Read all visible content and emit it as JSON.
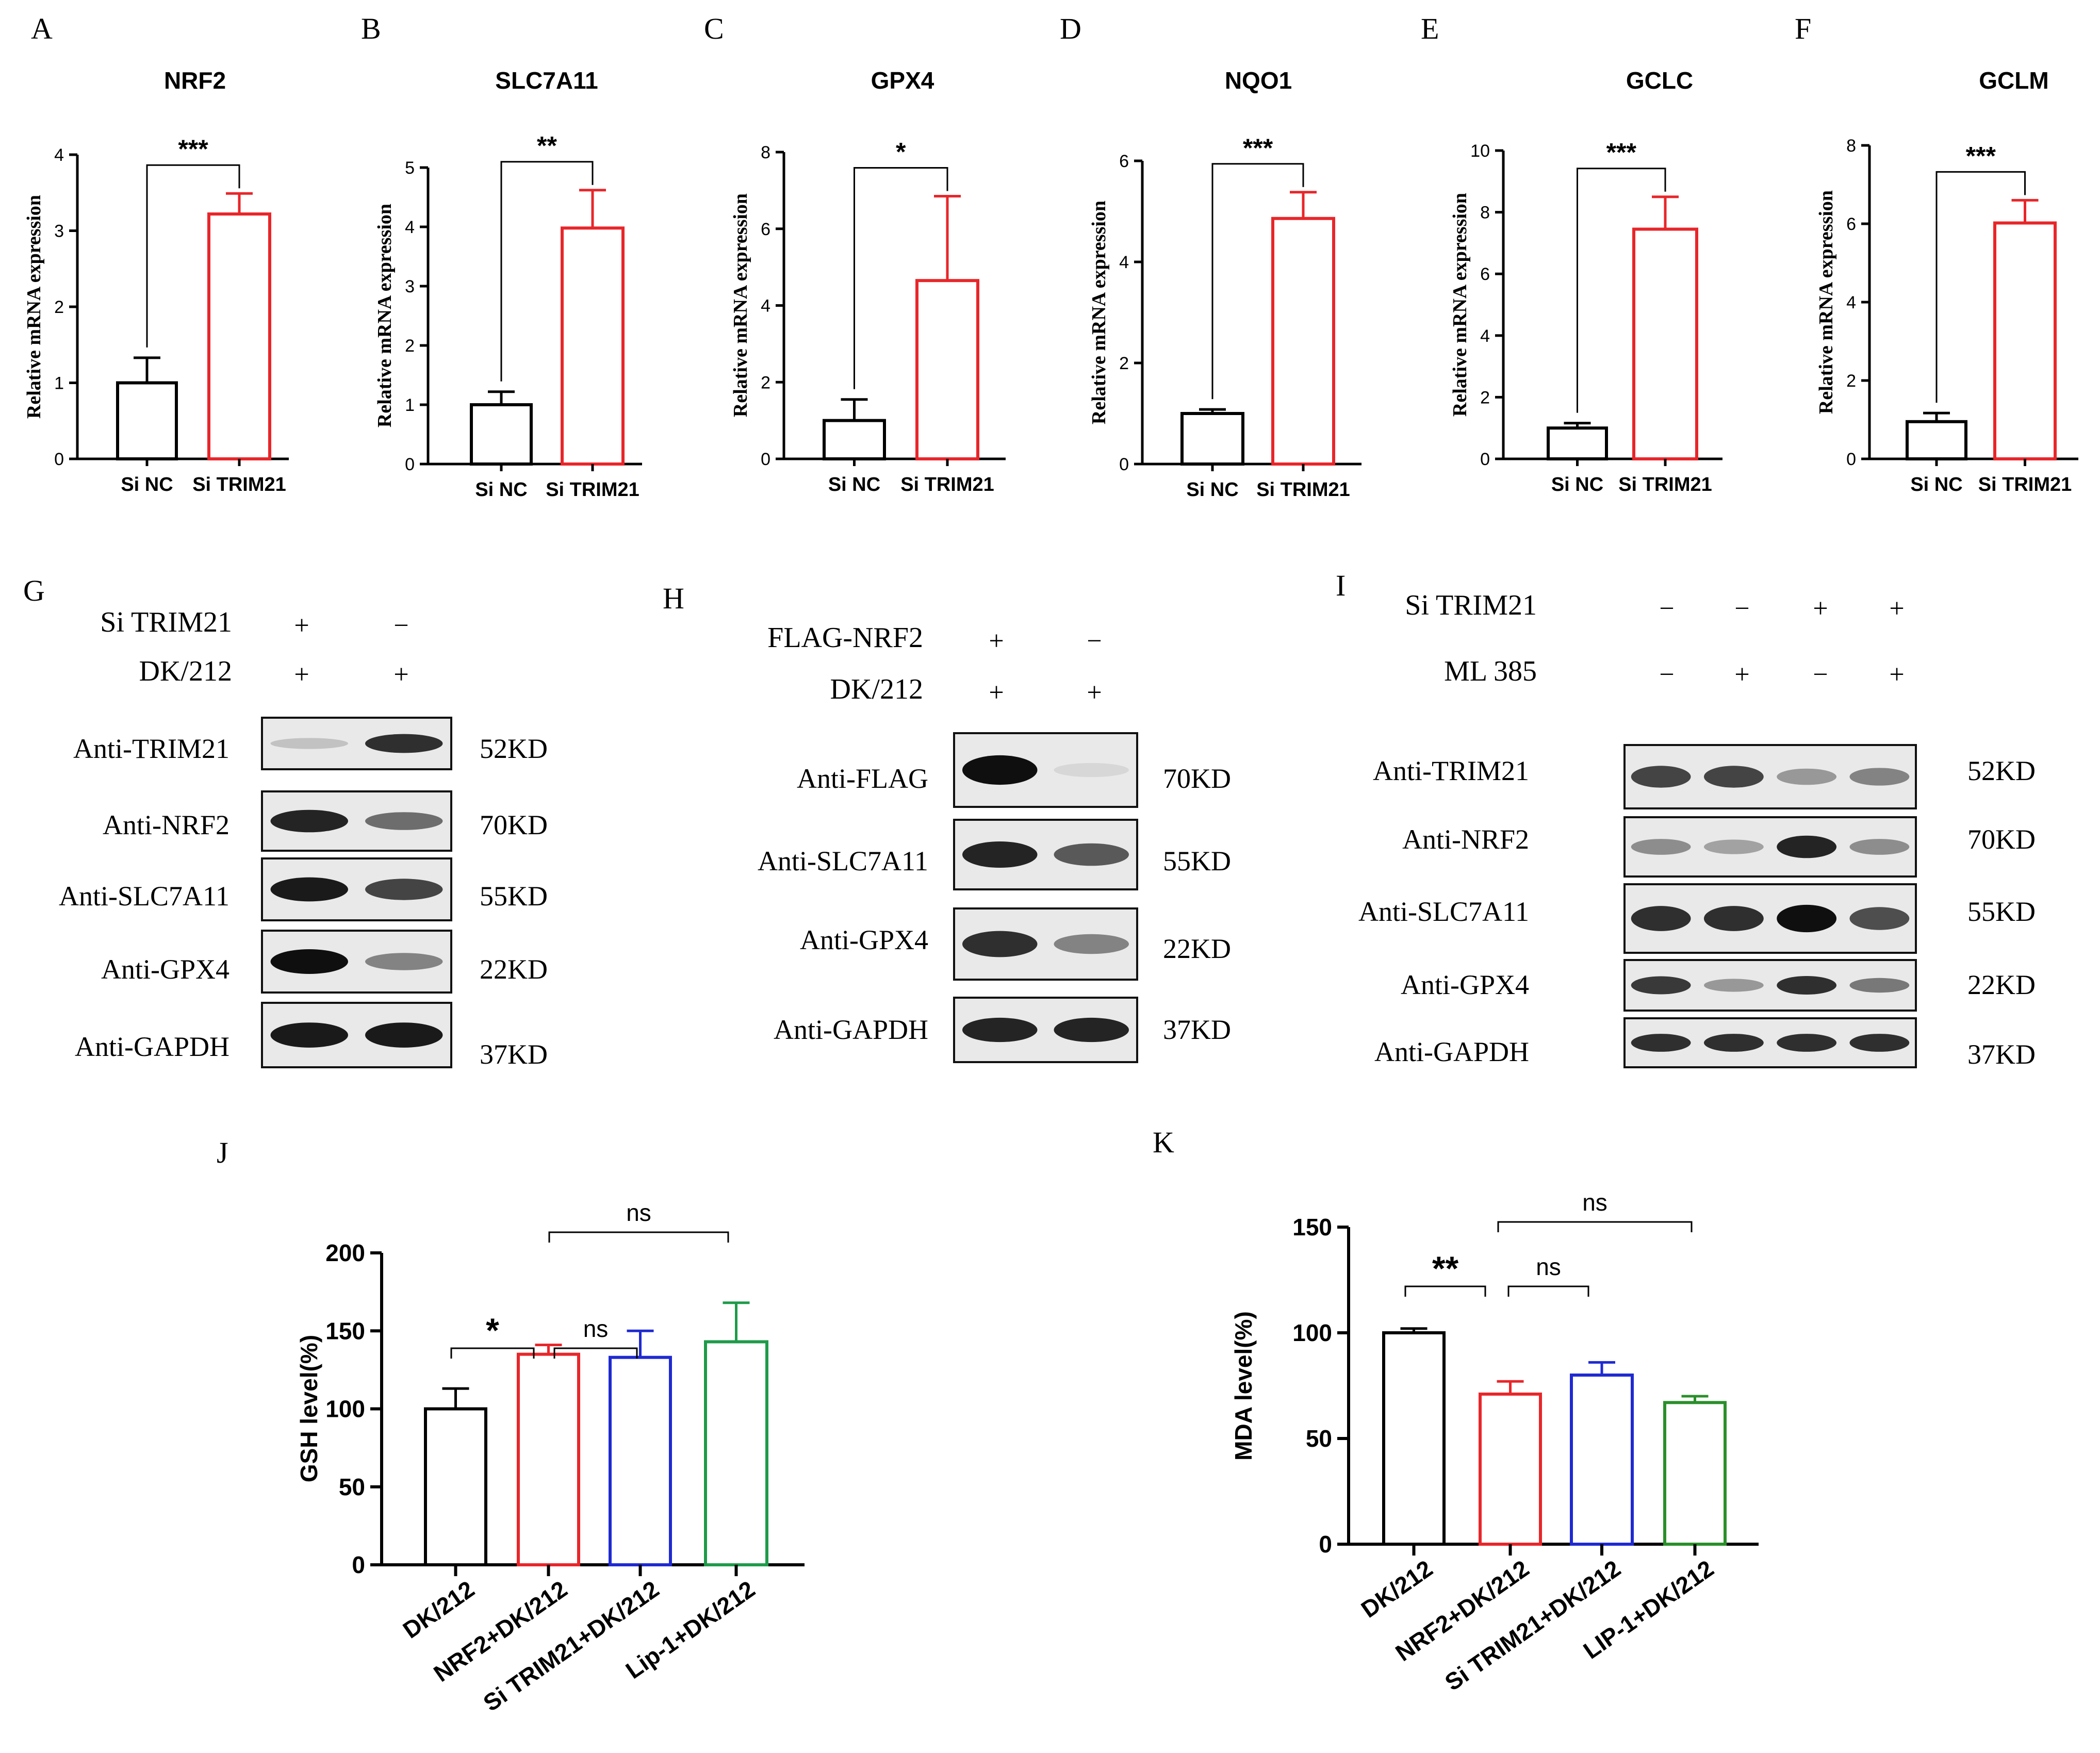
{
  "panel_letters": [
    "A",
    "B",
    "C",
    "D",
    "E",
    "F",
    "G",
    "H",
    "I",
    "J",
    "K"
  ],
  "colors": {
    "black": "#000000",
    "red": "#e8262a",
    "blue": "#1f2ad1",
    "green": "#1e9b4a",
    "greenK": "#2a8f2a"
  },
  "chart_data": [
    {
      "panel": "A",
      "type": "bar",
      "title": "NRF2",
      "ylabel": "Relative mRNA expression",
      "categories": [
        "Si NC",
        "Si TRIM21"
      ],
      "values": [
        1.0,
        3.22
      ],
      "errors": [
        0.33,
        0.27
      ],
      "ylim": [
        0,
        4
      ],
      "yticks": [
        0,
        1,
        2,
        3,
        4
      ],
      "significance": "***",
      "colors": [
        "black",
        "red"
      ]
    },
    {
      "panel": "B",
      "type": "bar",
      "title": "SLC7A11",
      "ylabel": "Relative mRNA expression",
      "categories": [
        "Si NC",
        "Si TRIM21"
      ],
      "values": [
        1.0,
        3.98
      ],
      "errors": [
        0.22,
        0.64
      ],
      "ylim": [
        0,
        5
      ],
      "yticks": [
        0,
        1,
        2,
        3,
        4,
        5
      ],
      "significance": "**",
      "colors": [
        "black",
        "red"
      ]
    },
    {
      "panel": "C",
      "type": "bar",
      "title": "GPX4",
      "ylabel": "Relative mRNA expression",
      "categories": [
        "Si NC",
        "Si TRIM21"
      ],
      "values": [
        1.0,
        4.65
      ],
      "errors": [
        0.55,
        2.2
      ],
      "ylim": [
        0,
        8
      ],
      "yticks": [
        0,
        2,
        4,
        6,
        8
      ],
      "significance": "*",
      "colors": [
        "black",
        "red"
      ]
    },
    {
      "panel": "D",
      "type": "bar",
      "title": "NQO1",
      "ylabel": "Relative mRNA expression",
      "categories": [
        "Si NC",
        "Si TRIM21"
      ],
      "values": [
        1.0,
        4.86
      ],
      "errors": [
        0.08,
        0.52
      ],
      "ylim": [
        0,
        6
      ],
      "yticks": [
        0,
        2,
        4,
        6
      ],
      "significance": "***",
      "colors": [
        "black",
        "red"
      ]
    },
    {
      "panel": "E",
      "type": "bar",
      "title": "GCLC",
      "ylabel": "Relative mRNA expression",
      "categories": [
        "Si NC",
        "Si TRIM21"
      ],
      "values": [
        1.0,
        7.45
      ],
      "errors": [
        0.16,
        1.05
      ],
      "ylim": [
        0,
        10
      ],
      "yticks": [
        0,
        2,
        4,
        6,
        8,
        10
      ],
      "significance": "***",
      "colors": [
        "black",
        "red"
      ]
    },
    {
      "panel": "F",
      "type": "bar",
      "title": "GCLM",
      "ylabel": "Relative mRNA expression",
      "categories": [
        "Si NC",
        "Si TRIM21"
      ],
      "values": [
        0.95,
        6.02
      ],
      "errors": [
        0.22,
        0.58
      ],
      "ylim": [
        0,
        8
      ],
      "yticks": [
        0,
        2,
        4,
        6,
        8
      ],
      "significance": "***",
      "colors": [
        "black",
        "red"
      ]
    },
    {
      "panel": "J",
      "type": "bar",
      "title": "",
      "ylabel": "GSH  level(%)",
      "categories": [
        "DK/212",
        "NRF2+DK/212",
        "Si TRIM21+DK/212",
        "Lip-1+DK/212"
      ],
      "values": [
        100,
        135,
        133,
        143
      ],
      "errors": [
        13,
        6,
        17,
        25
      ],
      "ylim": [
        0,
        200
      ],
      "yticks": [
        0,
        50,
        100,
        150,
        200
      ],
      "significance_pairs": [
        {
          "label": "*",
          "from": 0,
          "to": 1
        },
        {
          "label": "ns",
          "from": 1,
          "to": 2
        },
        {
          "label": "ns",
          "from": 1,
          "to": 3
        }
      ],
      "colors": [
        "black",
        "red",
        "blue",
        "green"
      ]
    },
    {
      "panel": "K",
      "type": "bar",
      "title": "",
      "ylabel": "MDA level(%)",
      "categories": [
        "DK/212",
        "NRF2+DK/212",
        "Si TRIM21+DK/212",
        "LIP-1+DK/212"
      ],
      "values": [
        100,
        71,
        80,
        67
      ],
      "errors": [
        2,
        6,
        6,
        3
      ],
      "ylim": [
        0,
        150
      ],
      "yticks": [
        0,
        50,
        100,
        150
      ],
      "significance_pairs": [
        {
          "label": "**",
          "from": 0,
          "to": 1
        },
        {
          "label": "ns",
          "from": 1,
          "to": 2
        },
        {
          "label": "ns",
          "from": 1,
          "to": 3
        }
      ],
      "colors": [
        "black",
        "red",
        "blue",
        "greenK"
      ]
    }
  ],
  "blots": {
    "G": {
      "conditions": [
        {
          "label": "Si TRIM21",
          "signs": [
            "+",
            "−"
          ]
        },
        {
          "label": "DK/212",
          "signs": [
            "+",
            "+"
          ]
        }
      ],
      "rows": [
        {
          "label": "Anti-TRIM21",
          "kd": "52KD",
          "bands": [
            0.15,
            0.85
          ]
        },
        {
          "label": "Anti-NRF2",
          "kd": "70KD",
          "bands": [
            0.9,
            0.55
          ]
        },
        {
          "label": "Anti-SLC7A11",
          "kd": "55KD",
          "bands": [
            0.95,
            0.75
          ]
        },
        {
          "label": "Anti-GPX4",
          "kd": "22KD",
          "bands": [
            1.0,
            0.45
          ]
        },
        {
          "label": "Anti-GAPDH",
          "kd": "37KD",
          "bands": [
            0.95,
            0.95
          ]
        }
      ]
    },
    "H": {
      "conditions": [
        {
          "label": "FLAG-NRF2",
          "signs": [
            "+",
            "−"
          ]
        },
        {
          "label": "DK/212",
          "signs": [
            "+",
            "+"
          ]
        }
      ],
      "rows": [
        {
          "label": "Anti-FLAG",
          "kd": "70KD",
          "bands": [
            1.0,
            0.05
          ]
        },
        {
          "label": "Anti-SLC7A11",
          "kd": "55KD",
          "bands": [
            0.9,
            0.65
          ]
        },
        {
          "label": "Anti-GPX4",
          "kd": "22KD",
          "bands": [
            0.85,
            0.45
          ]
        },
        {
          "label": "Anti-GAPDH",
          "kd": "37KD",
          "bands": [
            0.9,
            0.9
          ]
        }
      ]
    },
    "I": {
      "conditions": [
        {
          "label": "Si TRIM21",
          "signs": [
            "−",
            "−",
            "+",
            "+"
          ]
        },
        {
          "label": "ML 385",
          "signs": [
            "−",
            "+",
            "−",
            "+"
          ]
        }
      ],
      "rows": [
        {
          "label": "Anti-TRIM21",
          "kd": "52KD",
          "bands": [
            0.75,
            0.75,
            0.35,
            0.45
          ]
        },
        {
          "label": "Anti-NRF2",
          "kd": "70KD",
          "bands": [
            0.4,
            0.3,
            0.9,
            0.4
          ]
        },
        {
          "label": "Anti-SLC7A11",
          "kd": "55KD",
          "bands": [
            0.85,
            0.85,
            1.0,
            0.7
          ]
        },
        {
          "label": "Anti-GPX4",
          "kd": "22KD",
          "bands": [
            0.8,
            0.35,
            0.85,
            0.5
          ]
        },
        {
          "label": "Anti-GAPDH",
          "kd": "37KD",
          "bands": [
            0.85,
            0.85,
            0.85,
            0.85
          ]
        }
      ]
    }
  }
}
